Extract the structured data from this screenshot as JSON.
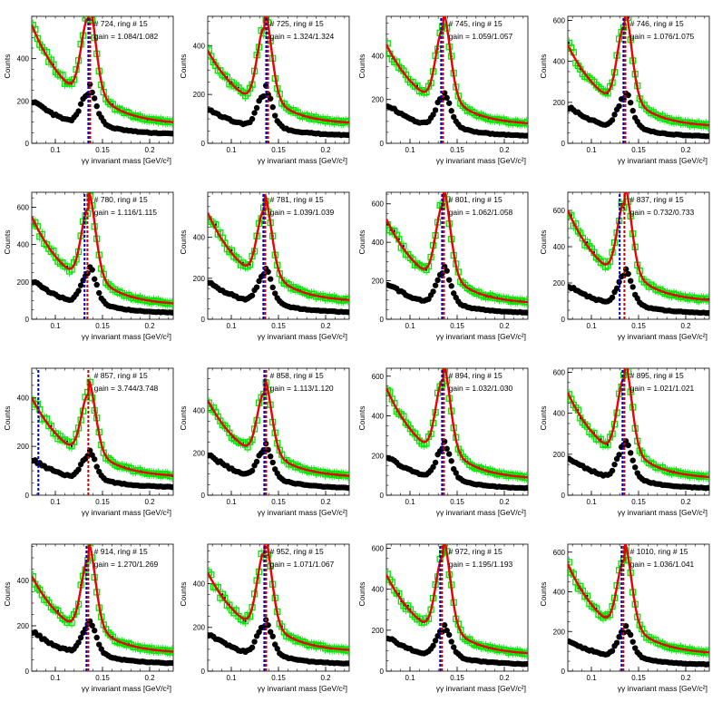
{
  "figure": {
    "xlabel": "γγ invariant mass [GeV/c²]",
    "ylabel": "Counts",
    "colors": {
      "data_open": "#00e600",
      "data_closed": "#000000",
      "fit": "#ee0000",
      "line_blue": "#0000cc",
      "line_red": "#cc0000"
    }
  },
  "chart_data": [
    {
      "type": "scatter",
      "info": "# 724, ring # 15",
      "gain": "gain = 1.084/1.082",
      "xlim": [
        0.075,
        0.225
      ],
      "ylim": [
        0,
        600
      ],
      "yticks": [
        0,
        200,
        400
      ],
      "xticks": [
        0.1,
        0.15,
        0.2
      ],
      "peak_x": [
        0.135,
        0.137
      ],
      "green": {
        "y_left": 560,
        "dip_y": 380,
        "peak_y": 590,
        "y_right": 85
      },
      "black": {
        "y_left": 205,
        "dip_y": 110,
        "peak_y": 240,
        "y_right": 40
      }
    },
    {
      "type": "scatter",
      "info": "# 725, ring # 15",
      "gain": "gain = 1.324/1.324",
      "xlim": [
        0.075,
        0.225
      ],
      "ylim": [
        0,
        520
      ],
      "yticks": [
        0,
        200,
        400
      ],
      "xticks": [
        0.1,
        0.15,
        0.2
      ],
      "peak_x": [
        0.137,
        0.139
      ],
      "green": {
        "y_left": 380,
        "dip_y": 270,
        "peak_y": 470,
        "y_right": 75
      },
      "black": {
        "y_left": 145,
        "dip_y": 90,
        "peak_y": 200,
        "y_right": 30
      }
    },
    {
      "type": "scatter",
      "info": "# 745, ring # 15",
      "gain": "gain = 1.059/1.057",
      "xlim": [
        0.075,
        0.225
      ],
      "ylim": [
        0,
        580
      ],
      "yticks": [
        0,
        200,
        400
      ],
      "xticks": [
        0.1,
        0.15,
        0.2
      ],
      "peak_x": [
        0.133,
        0.135
      ],
      "green": {
        "y_left": 450,
        "dip_y": 330,
        "peak_y": 520,
        "y_right": 80
      },
      "black": {
        "y_left": 180,
        "dip_y": 110,
        "peak_y": 210,
        "y_right": 30
      }
    },
    {
      "type": "scatter",
      "info": "# 746, ring # 15",
      "gain": "gain = 1.076/1.075",
      "xlim": [
        0.075,
        0.225
      ],
      "ylim": [
        0,
        620
      ],
      "yticks": [
        0,
        200,
        400,
        600
      ],
      "xticks": [
        0.1,
        0.15,
        0.2
      ],
      "peak_x": [
        0.134,
        0.136
      ],
      "green": {
        "y_left": 480,
        "dip_y": 340,
        "peak_y": 570,
        "y_right": 75
      },
      "black": {
        "y_left": 180,
        "dip_y": 110,
        "peak_y": 220,
        "y_right": 30
      }
    },
    {
      "type": "scatter",
      "info": "# 780, ring # 15",
      "gain": "gain = 1.116/1.115",
      "xlim": [
        0.075,
        0.225
      ],
      "ylim": [
        0,
        680
      ],
      "yticks": [
        0,
        200,
        400,
        600
      ],
      "xticks": [
        0.1,
        0.15,
        0.2
      ],
      "peak_x": [
        0.131,
        0.134
      ],
      "green": {
        "y_left": 550,
        "dip_y": 370,
        "peak_y": 590,
        "y_right": 70
      },
      "black": {
        "y_left": 210,
        "dip_y": 130,
        "peak_y": 250,
        "y_right": 30
      }
    },
    {
      "type": "scatter",
      "info": "# 781, ring # 15",
      "gain": "gain = 1.039/1.039",
      "xlim": [
        0.075,
        0.225
      ],
      "ylim": [
        0,
        620
      ],
      "yticks": [
        0,
        200,
        400
      ],
      "xticks": [
        0.1,
        0.15,
        0.2
      ],
      "peak_x": [
        0.134,
        0.136
      ],
      "green": {
        "y_left": 520,
        "dip_y": 350,
        "peak_y": 530,
        "y_right": 80
      },
      "black": {
        "y_left": 190,
        "dip_y": 120,
        "peak_y": 220,
        "y_right": 30
      }
    },
    {
      "type": "scatter",
      "info": "# 801, ring # 15",
      "gain": "gain = 1.062/1.058",
      "xlim": [
        0.075,
        0.225
      ],
      "ylim": [
        0,
        660
      ],
      "yticks": [
        0,
        200,
        400,
        600
      ],
      "xticks": [
        0.1,
        0.15,
        0.2
      ],
      "peak_x": [
        0.134,
        0.136
      ],
      "green": {
        "y_left": 520,
        "dip_y": 370,
        "peak_y": 590,
        "y_right": 75
      },
      "black": {
        "y_left": 190,
        "dip_y": 120,
        "peak_y": 240,
        "y_right": 30
      }
    },
    {
      "type": "scatter",
      "info": "# 837, ring # 15",
      "gain": "gain = 0.732/0.733",
      "xlim": [
        0.075,
        0.225
      ],
      "ylim": [
        0,
        700
      ],
      "yticks": [
        0,
        200,
        400,
        600
      ],
      "xticks": [
        0.1,
        0.15,
        0.2
      ],
      "peak_x": [
        0.13,
        0.135
      ],
      "green": {
        "y_left": 600,
        "dip_y": 380,
        "peak_y": 640,
        "y_right": 90
      },
      "black": {
        "y_left": 190,
        "dip_y": 130,
        "peak_y": 240,
        "y_right": 30
      }
    },
    {
      "type": "scatter",
      "info": "# 857, ring # 15",
      "gain": "gain = 3.744/3.748",
      "xlim": [
        0.075,
        0.225
      ],
      "ylim": [
        0,
        520
      ],
      "yticks": [
        0,
        200,
        400
      ],
      "xticks": [
        0.1,
        0.15,
        0.2
      ],
      "peak_x": [
        0.082,
        0.135
      ],
      "green": {
        "y_left": 400,
        "dip_y": 300,
        "peak_y": 410,
        "y_right": 70
      },
      "black": {
        "y_left": 150,
        "dip_y": 110,
        "peak_y": 160,
        "y_right": 30
      }
    },
    {
      "type": "scatter",
      "info": "# 858, ring # 15",
      "gain": "gain = 1.113/1.120",
      "xlim": [
        0.075,
        0.225
      ],
      "ylim": [
        0,
        600
      ],
      "yticks": [
        0,
        200,
        400
      ],
      "xticks": [
        0.1,
        0.15,
        0.2
      ],
      "peak_x": [
        0.135,
        0.137
      ],
      "green": {
        "y_left": 450,
        "dip_y": 340,
        "peak_y": 480,
        "y_right": 80
      },
      "black": {
        "y_left": 200,
        "dip_y": 120,
        "peak_y": 210,
        "y_right": 30
      }
    },
    {
      "type": "scatter",
      "info": "# 894, ring # 15",
      "gain": "gain = 1.032/1.030",
      "xlim": [
        0.075,
        0.225
      ],
      "ylim": [
        0,
        640
      ],
      "yticks": [
        0,
        200,
        400,
        600
      ],
      "xticks": [
        0.1,
        0.15,
        0.2
      ],
      "peak_x": [
        0.134,
        0.136
      ],
      "green": {
        "y_left": 540,
        "dip_y": 380,
        "peak_y": 580,
        "y_right": 75
      },
      "black": {
        "y_left": 200,
        "dip_y": 120,
        "peak_y": 230,
        "y_right": 30
      }
    },
    {
      "type": "scatter",
      "info": "# 895, ring # 15",
      "gain": "gain = 1.021/1.021",
      "xlim": [
        0.075,
        0.225
      ],
      "ylim": [
        0,
        620
      ],
      "yticks": [
        0,
        200,
        400,
        600
      ],
      "xticks": [
        0.1,
        0.15,
        0.2
      ],
      "peak_x": [
        0.133,
        0.135
      ],
      "green": {
        "y_left": 500,
        "dip_y": 360,
        "peak_y": 570,
        "y_right": 75
      },
      "black": {
        "y_left": 190,
        "dip_y": 120,
        "peak_y": 240,
        "y_right": 30
      }
    },
    {
      "type": "scatter",
      "info": "# 914, ring # 15",
      "gain": "gain = 1.270/1.269",
      "xlim": [
        0.075,
        0.225
      ],
      "ylim": [
        0,
        560
      ],
      "yticks": [
        0,
        200,
        400
      ],
      "xticks": [
        0.1,
        0.15,
        0.2
      ],
      "peak_x": [
        0.133,
        0.135
      ],
      "green": {
        "y_left": 420,
        "dip_y": 310,
        "peak_y": 490,
        "y_right": 75
      },
      "black": {
        "y_left": 180,
        "dip_y": 110,
        "peak_y": 200,
        "y_right": 30
      }
    },
    {
      "type": "scatter",
      "info": "# 952, ring # 15",
      "gain": "gain = 1.071/1.067",
      "xlim": [
        0.075,
        0.225
      ],
      "ylim": [
        0,
        580
      ],
      "yticks": [
        0,
        200,
        400
      ],
      "xticks": [
        0.1,
        0.15,
        0.2
      ],
      "peak_x": [
        0.135,
        0.137
      ],
      "green": {
        "y_left": 450,
        "dip_y": 340,
        "peak_y": 540,
        "y_right": 85
      },
      "black": {
        "y_left": 175,
        "dip_y": 120,
        "peak_y": 210,
        "y_right": 30
      }
    },
    {
      "type": "scatter",
      "info": "# 972, ring # 15",
      "gain": "gain = 1.195/1.193",
      "xlim": [
        0.075,
        0.225
      ],
      "ylim": [
        0,
        620
      ],
      "yticks": [
        0,
        200,
        400,
        600
      ],
      "xticks": [
        0.1,
        0.15,
        0.2
      ],
      "peak_x": [
        0.132,
        0.134
      ],
      "green": {
        "y_left": 470,
        "dip_y": 340,
        "peak_y": 560,
        "y_right": 75
      },
      "black": {
        "y_left": 170,
        "dip_y": 105,
        "peak_y": 200,
        "y_right": 30
      }
    },
    {
      "type": "scatter",
      "info": "# 1010, ring # 15",
      "gain": "gain = 1.036/1.041",
      "xlim": [
        0.075,
        0.225
      ],
      "ylim": [
        0,
        640
      ],
      "yticks": [
        0,
        200,
        400,
        600
      ],
      "xticks": [
        0.1,
        0.15,
        0.2
      ],
      "peak_x": [
        0.132,
        0.134
      ],
      "green": {
        "y_left": 540,
        "dip_y": 360,
        "peak_y": 560,
        "y_right": 80
      },
      "black": {
        "y_left": 160,
        "dip_y": 110,
        "peak_y": 200,
        "y_right": 30
      }
    }
  ]
}
